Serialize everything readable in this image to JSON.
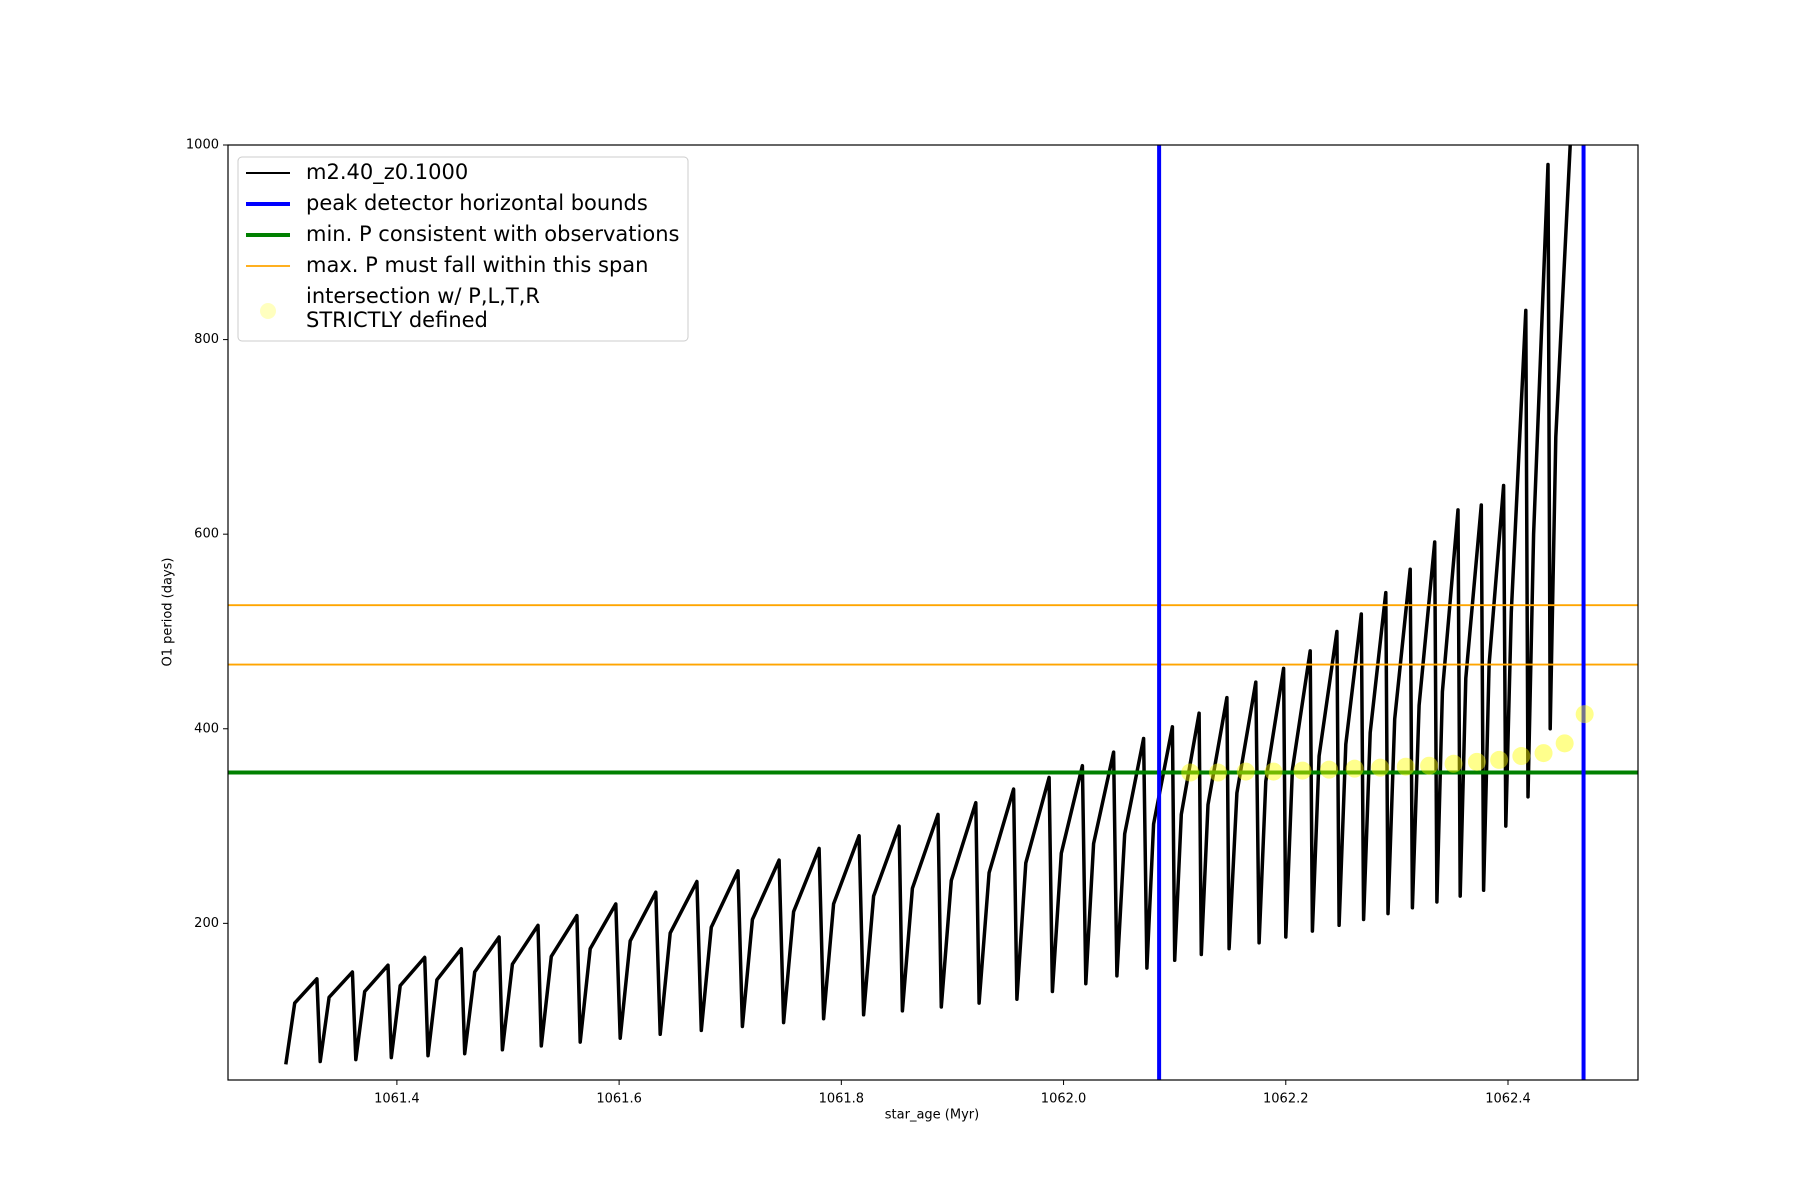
{
  "chart_data": {
    "type": "line",
    "xlabel": "star_age (Myr)",
    "ylabel": "O1 period (days)",
    "xlim": [
      1061.248,
      1062.517
    ],
    "ylim": [
      39,
      1000
    ],
    "xticks": [
      1061.4,
      1061.6,
      1061.8,
      {
        "value": 1062,
        "label": "1062.0"
      },
      1062.2,
      1062.4
    ],
    "yticks": [
      200,
      400,
      600,
      800,
      1000
    ],
    "legend": "upper left",
    "series": [
      {
        "name": "m2.40_z0.1000",
        "color": "#000000",
        "x": [
          1061.3,
          1061.308,
          1061.328,
          1061.331,
          1061.339,
          1061.36,
          1061.363,
          1061.371,
          1061.392,
          1061.395,
          1061.403,
          1061.425,
          1061.428,
          1061.436,
          1061.458,
          1061.461,
          1061.47,
          1061.492,
          1061.495,
          1061.504,
          1061.527,
          1061.53,
          1061.539,
          1061.562,
          1061.565,
          1061.574,
          1061.597,
          1061.601,
          1061.61,
          1061.633,
          1061.637,
          1061.646,
          1061.67,
          1061.674,
          1061.683,
          1061.707,
          1061.711,
          1061.72,
          1061.744,
          1061.748,
          1061.757,
          1061.78,
          1061.784,
          1061.793,
          1061.816,
          1061.82,
          1061.829,
          1061.852,
          1061.855,
          1061.864,
          1061.887,
          1061.89,
          1061.899,
          1061.921,
          1061.924,
          1061.933,
          1061.955,
          1061.958,
          1061.966,
          1061.987,
          1061.99,
          1061.998,
          1062.017,
          1062.02,
          1062.027,
          1062.045,
          1062.048,
          1062.055,
          1062.072,
          1062.075,
          1062.081,
          1062.098,
          1062.1,
          1062.106,
          1062.122,
          1062.124,
          1062.13,
          1062.147,
          1062.149,
          1062.156,
          1062.173,
          1062.176,
          1062.182,
          1062.198,
          1062.2,
          1062.206,
          1062.222,
          1062.224,
          1062.23,
          1062.246,
          1062.248,
          1062.254,
          1062.268,
          1062.27,
          1062.276,
          1062.29,
          1062.292,
          1062.298,
          1062.312,
          1062.314,
          1062.32,
          1062.334,
          1062.336,
          1062.341,
          1062.355,
          1062.357,
          1062.362,
          1062.376,
          1062.378,
          1062.383,
          1062.396,
          1062.398,
          1062.403,
          1062.416,
          1062.418,
          1062.423,
          1062.436,
          1062.438,
          1062.443,
          1062.456
        ],
        "values": [
          55,
          118,
          143,
          58,
          124,
          150,
          60,
          130,
          157,
          62,
          136,
          165,
          64,
          142,
          174,
          66,
          150,
          186,
          70,
          158,
          198,
          74,
          166,
          208,
          78,
          174,
          220,
          82,
          182,
          232,
          86,
          190,
          243,
          90,
          196,
          254,
          94,
          204,
          265,
          98,
          212,
          277,
          102,
          220,
          290,
          106,
          228,
          300,
          110,
          236,
          312,
          114,
          244,
          324,
          118,
          252,
          338,
          122,
          262,
          350,
          130,
          272,
          362,
          138,
          282,
          376,
          146,
          292,
          390,
          154,
          302,
          402,
          162,
          312,
          416,
          168,
          322,
          432,
          174,
          334,
          448,
          180,
          346,
          462,
          186,
          358,
          480,
          192,
          372,
          500,
          198,
          384,
          518,
          204,
          396,
          540,
          210,
          410,
          564,
          216,
          424,
          592,
          222,
          438,
          625,
          228,
          452,
          630,
          234,
          466,
          650,
          300,
          520,
          830,
          330,
          600,
          980,
          400,
          700,
          1000
        ]
      }
    ],
    "vlines": {
      "name": "peak detector horizontal bounds",
      "color": "#0000ff",
      "x": [
        1062.086,
        1062.468
      ]
    },
    "hline_min": {
      "name": "min. P consistent with observations",
      "color": "#008000",
      "y": 355
    },
    "hlines_max": {
      "name": "max. P must fall within this span",
      "color": "#ffa500",
      "y": [
        466,
        527
      ]
    },
    "points": {
      "name": [
        "intersection w/ P,L,T,R",
        "STRICTLY defined"
      ],
      "color": "#ffff00",
      "x": [
        1062.114,
        1062.139,
        1062.164,
        1062.189,
        1062.215,
        1062.239,
        1062.262,
        1062.285,
        1062.308,
        1062.329,
        1062.351,
        1062.372,
        1062.392,
        1062.412,
        1062.432,
        1062.451,
        1062.469
      ],
      "values": [
        355,
        355,
        356,
        356,
        357,
        358,
        359,
        360,
        361,
        362,
        364,
        366,
        368,
        372,
        375,
        385,
        415
      ]
    }
  }
}
